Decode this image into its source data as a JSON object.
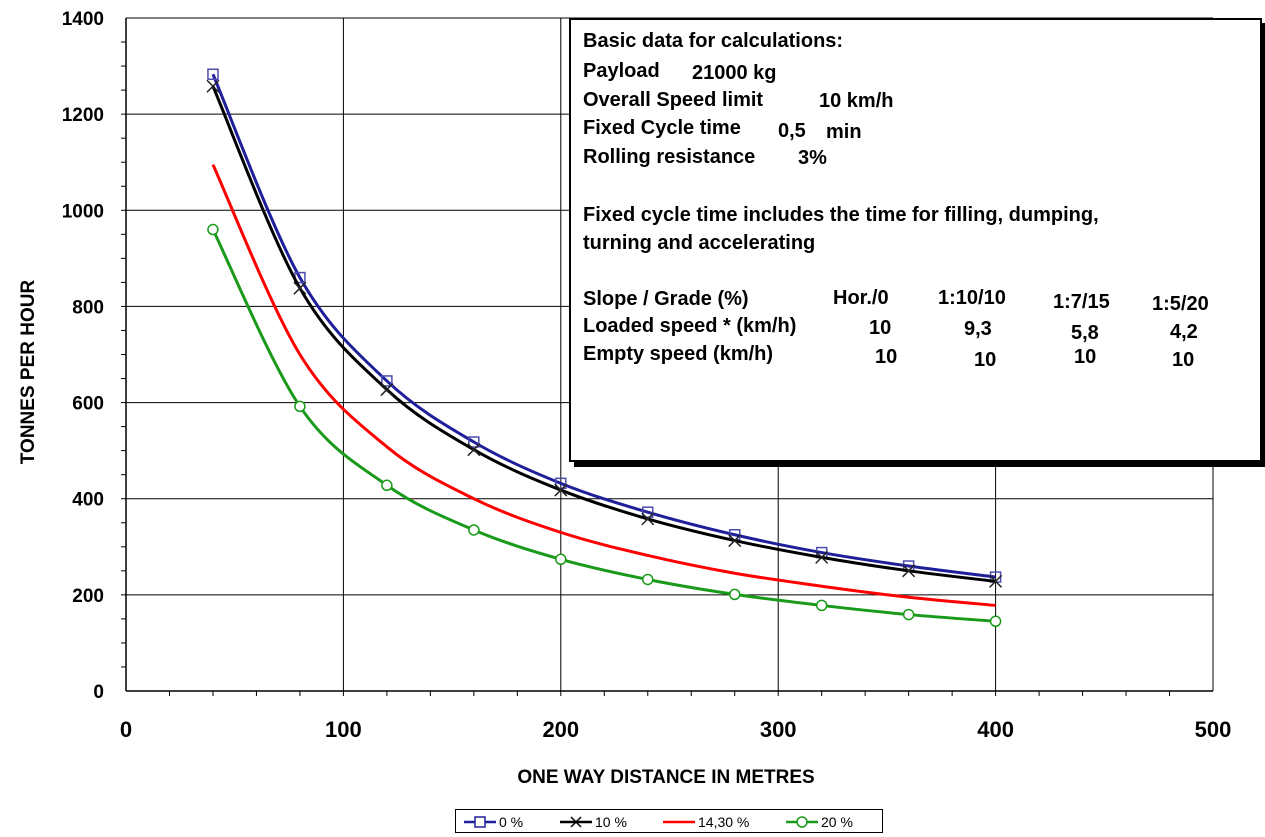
{
  "chart_data": {
    "type": "line",
    "title": "",
    "xlabel": "ONE WAY DISTANCE IN METRES",
    "ylabel": "TONNES PER HOUR",
    "xlim": [
      0,
      500
    ],
    "ylim": [
      0,
      1400
    ],
    "xticks": [
      0,
      100,
      200,
      300,
      400,
      500
    ],
    "yticks": [
      0,
      200,
      400,
      600,
      800,
      1000,
      1200,
      1400
    ],
    "grid": true,
    "legend_position": "bottom",
    "x": [
      40,
      80,
      120,
      160,
      200,
      240,
      280,
      320,
      360,
      400
    ],
    "series": [
      {
        "name": "0 %",
        "color": "#1f1f9a",
        "marker": "square",
        "values": [
          1283,
          860,
          645,
          518,
          432,
          372,
          325,
          288,
          260,
          237
        ]
      },
      {
        "name": "10 %",
        "color": "#000000",
        "marker": "x",
        "values": [
          1258,
          838,
          627,
          502,
          418,
          358,
          313,
          278,
          250,
          228
        ]
      },
      {
        "name": "14,30 %",
        "color": "#ff0000",
        "marker": "none",
        "values": [
          1095,
          700,
          508,
          400,
          330,
          282,
          245,
          218,
          195,
          178
        ]
      },
      {
        "name": "20 %",
        "color": "#1a9a1a",
        "marker": "circle",
        "values": [
          960,
          592,
          428,
          335,
          274,
          232,
          201,
          178,
          159,
          145
        ]
      }
    ]
  },
  "info_box": {
    "basic_title": "Basic data for calculations:",
    "payload_label": "Payload",
    "payload_value": "21000 kg",
    "speed_label": "Overall Speed limit",
    "speed_value": "10 km/h",
    "cycle_label": "Fixed Cycle time",
    "cycle_value": "0,5",
    "cycle_unit": "min",
    "rolling_label": "Rolling resistance",
    "rolling_value": "3%",
    "note_line1": "Fixed cycle time includes the time for filling, dumping,",
    "note_line2": "turning and accelerating",
    "table": {
      "header_label": "Slope / Grade (%)",
      "headers": [
        "Hor./0",
        "1:10/10",
        "1:7/15",
        "1:5/20"
      ],
      "loaded_label": "Loaded speed * (km/h)",
      "loaded": [
        "10",
        "9,3",
        "5,8",
        "4,2"
      ],
      "empty_label": "Empty speed (km/h)",
      "empty": [
        "10",
        "10",
        "10",
        "10"
      ]
    }
  }
}
